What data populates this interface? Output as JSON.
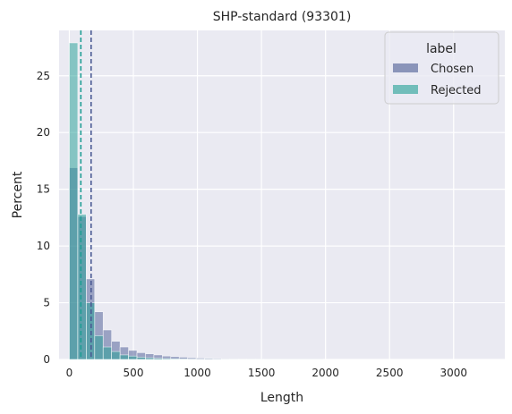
{
  "chart_data": {
    "type": "histogram",
    "title": "SHP-standard (93301)",
    "xlabel": "Length",
    "ylabel": "Percent",
    "xlim": [
      -80,
      3400
    ],
    "ylim": [
      0,
      29
    ],
    "xticks": [
      0,
      500,
      1000,
      1500,
      2000,
      2500,
      3000
    ],
    "yticks": [
      0,
      5,
      10,
      15,
      20,
      25
    ],
    "bin_width": 66,
    "bin_start": 0,
    "legend": {
      "title": "label",
      "position": "top-right",
      "entries": [
        "Chosen",
        "Rejected"
      ]
    },
    "colors": {
      "Chosen": "#4a5a93",
      "Rejected": "#1f9e94",
      "chosen_alpha": 0.5,
      "rejected_alpha": 0.5,
      "background": "#eaeaf2",
      "grid": "#ffffff"
    },
    "series": [
      {
        "name": "Chosen",
        "values": [
          16.9,
          12.6,
          7.1,
          4.2,
          2.6,
          1.6,
          1.1,
          0.8,
          0.6,
          0.5,
          0.4,
          0.3,
          0.25,
          0.2,
          0.15,
          0.12,
          0.1,
          0.08,
          0.06,
          0.05,
          0.04,
          0.03,
          0.03,
          0.02,
          0.02,
          0.02,
          0.01,
          0.01,
          0.01,
          0.01
        ]
      },
      {
        "name": "Rejected",
        "values": [
          27.9,
          12.8,
          5.0,
          2.1,
          1.1,
          0.7,
          0.4,
          0.3,
          0.2,
          0.15,
          0.1,
          0.08,
          0.06,
          0.05,
          0.04,
          0.03,
          0.02,
          0.02,
          0.01,
          0.01,
          0.01,
          0.01,
          0.01,
          0.01,
          0.01,
          0.01,
          0.01,
          0.01,
          0.01,
          0.01
        ]
      }
    ],
    "mean_lines": [
      {
        "name": "Chosen",
        "x": 170,
        "style": "dashed"
      },
      {
        "name": "Rejected",
        "x": 90,
        "style": "dashed"
      }
    ]
  }
}
